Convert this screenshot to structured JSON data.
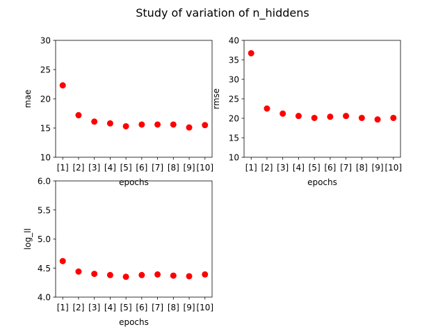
{
  "figure": {
    "suptitle": "Study of variation of n_hiddens"
  },
  "chart_data": [
    {
      "type": "scatter",
      "xlabel": "epochs",
      "ylabel": "mae",
      "categories": [
        "[1]",
        "[2]",
        "[3]",
        "[4]",
        "[5]",
        "[6]",
        "[7]",
        "[8]",
        "[9]",
        "[10]"
      ],
      "values": [
        22.3,
        17.2,
        16.1,
        15.8,
        15.3,
        15.6,
        15.6,
        15.6,
        15.1,
        15.5
      ],
      "ylim": [
        10,
        30
      ],
      "yticks": [
        10,
        15,
        20,
        25,
        30
      ],
      "marker_color": "#ff0000",
      "grid": false
    },
    {
      "type": "scatter",
      "xlabel": "epochs",
      "ylabel": "rmse",
      "categories": [
        "[1]",
        "[2]",
        "[3]",
        "[4]",
        "[5]",
        "[6]",
        "[7]",
        "[8]",
        "[9]",
        "[10]"
      ],
      "values": [
        36.7,
        22.5,
        21.2,
        20.6,
        20.1,
        20.4,
        20.6,
        20.1,
        19.7,
        20.1
      ],
      "ylim": [
        10,
        40
      ],
      "yticks": [
        10,
        15,
        20,
        25,
        30,
        35,
        40
      ],
      "marker_color": "#ff0000",
      "grid": false
    },
    {
      "type": "scatter",
      "xlabel": "epochs",
      "ylabel": "log_ll",
      "categories": [
        "[1]",
        "[2]",
        "[3]",
        "[4]",
        "[5]",
        "[6]",
        "[7]",
        "[8]",
        "[9]",
        "[10]"
      ],
      "values": [
        4.62,
        4.44,
        4.4,
        4.38,
        4.35,
        4.38,
        4.39,
        4.37,
        4.36,
        4.39
      ],
      "ylim": [
        4.0,
        6.0
      ],
      "yticks": [
        "4.0",
        "4.5",
        "5.0",
        "5.5",
        "6.0"
      ],
      "marker_color": "#ff0000",
      "grid": false
    }
  ]
}
